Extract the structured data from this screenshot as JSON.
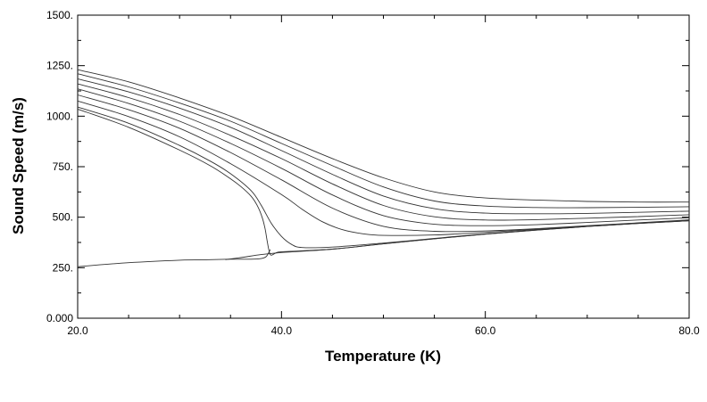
{
  "chart_data": {
    "type": "line",
    "title": "",
    "xlabel": "Temperature (K)",
    "ylabel": "Sound Speed (m/s)",
    "xlim": [
      20,
      80
    ],
    "ylim": [
      0,
      1500
    ],
    "grid": false,
    "legend": "none",
    "x_ticks": [
      "20.0",
      "40.0",
      "60.0",
      "80.0"
    ],
    "y_ticks": [
      "0.000",
      "250.",
      "500.",
      "750.",
      "1000.",
      "1250.",
      "1500."
    ],
    "line_color": "#333333",
    "series": [
      {
        "points": [
          [
            20,
            1230
          ],
          [
            25,
            1170
          ],
          [
            30,
            1090
          ],
          [
            35,
            1000
          ],
          [
            40,
            895
          ],
          [
            45,
            790
          ],
          [
            50,
            695
          ],
          [
            55,
            625
          ],
          [
            60,
            595
          ],
          [
            65,
            585
          ],
          [
            70,
            578
          ],
          [
            75,
            575
          ],
          [
            80,
            575
          ]
        ]
      },
      {
        "points": [
          [
            20,
            1210
          ],
          [
            25,
            1145
          ],
          [
            30,
            1065
          ],
          [
            35,
            975
          ],
          [
            40,
            865
          ],
          [
            45,
            755
          ],
          [
            50,
            650
          ],
          [
            55,
            580
          ],
          [
            60,
            555
          ],
          [
            65,
            548
          ],
          [
            70,
            547
          ],
          [
            75,
            549
          ],
          [
            80,
            552
          ]
        ]
      },
      {
        "points": [
          [
            20,
            1185
          ],
          [
            25,
            1120
          ],
          [
            30,
            1040
          ],
          [
            35,
            945
          ],
          [
            40,
            830
          ],
          [
            45,
            712
          ],
          [
            50,
            605
          ],
          [
            55,
            542
          ],
          [
            60,
            520
          ],
          [
            65,
            517
          ],
          [
            70,
            519
          ],
          [
            75,
            524
          ],
          [
            80,
            530
          ]
        ]
      },
      {
        "points": [
          [
            20,
            1160
          ],
          [
            25,
            1092
          ],
          [
            30,
            1008
          ],
          [
            35,
            905
          ],
          [
            40,
            790
          ],
          [
            45,
            665
          ],
          [
            50,
            558
          ],
          [
            55,
            502
          ],
          [
            60,
            486
          ],
          [
            65,
            488
          ],
          [
            70,
            495
          ],
          [
            75,
            503
          ],
          [
            80,
            512
          ]
        ]
      },
      {
        "points": [
          [
            20,
            1135
          ],
          [
            25,
            1063
          ],
          [
            30,
            975
          ],
          [
            35,
            865
          ],
          [
            40,
            742
          ],
          [
            45,
            610
          ],
          [
            50,
            508
          ],
          [
            55,
            465
          ],
          [
            60,
            458
          ],
          [
            65,
            463
          ],
          [
            70,
            474
          ],
          [
            75,
            486
          ],
          [
            80,
            497
          ]
        ]
      },
      {
        "points": [
          [
            20,
            1105
          ],
          [
            25,
            1032
          ],
          [
            30,
            940
          ],
          [
            35,
            820
          ],
          [
            40,
            685
          ],
          [
            45,
            545
          ],
          [
            50,
            455
          ],
          [
            55,
            430
          ],
          [
            60,
            432
          ],
          [
            65,
            443
          ],
          [
            70,
            458
          ],
          [
            75,
            472
          ],
          [
            80,
            487
          ]
        ]
      },
      {
        "points": [
          [
            20,
            1075
          ],
          [
            25,
            998
          ],
          [
            30,
            898
          ],
          [
            35,
            765
          ],
          [
            40,
            612
          ],
          [
            42,
            540
          ],
          [
            44,
            478
          ],
          [
            46,
            438
          ],
          [
            48,
            418
          ],
          [
            50,
            410
          ],
          [
            55,
            412
          ],
          [
            60,
            425
          ],
          [
            65,
            440
          ],
          [
            70,
            456
          ],
          [
            75,
            471
          ],
          [
            80,
            484
          ]
        ]
      },
      {
        "points": [
          [
            20,
            1045
          ],
          [
            25,
            965
          ],
          [
            30,
            855
          ],
          [
            33,
            778
          ],
          [
            35,
            715
          ],
          [
            37,
            632
          ],
          [
            38,
            560
          ],
          [
            39,
            470
          ],
          [
            40,
            405
          ],
          [
            41,
            365
          ],
          [
            42,
            350
          ],
          [
            45,
            352
          ],
          [
            50,
            372
          ],
          [
            55,
            395
          ],
          [
            60,
            418
          ],
          [
            65,
            437
          ],
          [
            70,
            455
          ],
          [
            75,
            470
          ],
          [
            80,
            483
          ]
        ]
      },
      {
        "points": [
          [
            20,
            1035
          ],
          [
            25,
            945
          ],
          [
            30,
            832
          ],
          [
            33,
            755
          ],
          [
            35,
            690
          ],
          [
            36,
            652
          ],
          [
            37,
            605
          ],
          [
            37.6,
            560
          ],
          [
            38.1,
            500
          ],
          [
            38.4,
            440
          ],
          [
            38.6,
            380
          ],
          [
            38.8,
            330
          ],
          [
            39,
            312
          ],
          [
            39.6,
            326
          ],
          [
            40.5,
            330
          ],
          [
            45,
            342
          ],
          [
            50,
            368
          ],
          [
            55,
            393
          ],
          [
            60,
            416
          ],
          [
            65,
            436
          ],
          [
            70,
            454
          ],
          [
            75,
            469
          ],
          [
            80,
            482
          ]
        ]
      },
      {
        "points": [
          [
            20,
            255
          ],
          [
            25,
            275
          ],
          [
            30,
            287
          ],
          [
            33,
            290
          ],
          [
            35,
            292
          ],
          [
            37,
            292
          ],
          [
            38,
            295
          ],
          [
            38.5,
            305
          ],
          [
            38.8,
            330
          ],
          [
            38.9,
            340
          ]
        ]
      },
      {
        "points": [
          [
            34.5,
            290
          ],
          [
            36,
            300
          ],
          [
            38,
            315
          ],
          [
            40,
            325
          ],
          [
            45,
            342
          ],
          [
            50,
            368
          ],
          [
            55,
            393
          ],
          [
            60,
            416
          ],
          [
            65,
            436
          ],
          [
            70,
            454
          ],
          [
            75,
            469
          ],
          [
            80,
            482
          ]
        ]
      }
    ]
  }
}
